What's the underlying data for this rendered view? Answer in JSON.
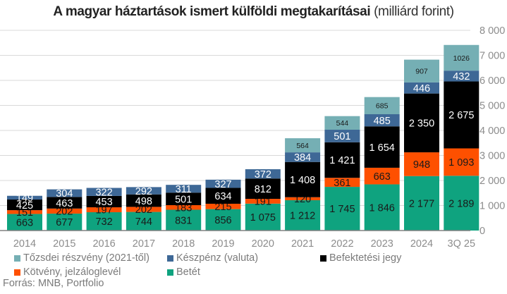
{
  "title": {
    "bold": "A magyar háztartások ismert külföldi megtakarításai",
    "unit": "(milliárd forint)"
  },
  "source": "Forrás: MNB, Portfolio",
  "chart_data": {
    "type": "bar",
    "stacked": true,
    "title": "A magyar háztartások ismert külföldi megtakarításai (milliárd forint)",
    "xlabel": "",
    "ylabel": "",
    "ylim": [
      0,
      8000
    ],
    "yticks": [
      0,
      1000,
      2000,
      3000,
      4000,
      5000,
      6000,
      7000,
      8000
    ],
    "ytick_labels": [
      "0",
      "1 000",
      "2 000",
      "3 000",
      "4 000",
      "5 000",
      "6 000",
      "7 000",
      "8 000"
    ],
    "y_axis_side": "right",
    "grid": true,
    "legend_position": "bottom",
    "categories": [
      "2014",
      "2015",
      "2016",
      "2017",
      "2018",
      "2019",
      "2020",
      "2021",
      "2022",
      "2023",
      "2024",
      "3Q 25"
    ],
    "series": [
      {
        "name": "Betét",
        "color": "#0fa37f",
        "label_color": "#1a1a1a",
        "values": [
          663,
          677,
          732,
          744,
          831,
          856,
          1075,
          1212,
          1745,
          1846,
          2177,
          2189
        ],
        "labels": [
          "663",
          "677",
          "732",
          "744",
          "831",
          "856",
          "1 075",
          "1 212",
          "1 745",
          "1 846",
          "2 177",
          "2 189"
        ]
      },
      {
        "name": "Kötvény, jelzáloglevél",
        "color": "#fe5000",
        "label_color": "#1a1a1a",
        "values": [
          151,
          202,
          197,
          202,
          183,
          215,
          191,
          120,
          361,
          663,
          948,
          1093
        ],
        "labels": [
          "151",
          "202",
          "197",
          "202",
          "183",
          "215",
          "191",
          "120",
          "361",
          "663",
          "948",
          "1 093"
        ]
      },
      {
        "name": "Befektetési jegy",
        "color": "#000000",
        "label_color": "#ffffff",
        "values": [
          425,
          463,
          453,
          498,
          501,
          634,
          812,
          1408,
          1421,
          1654,
          2350,
          2675
        ],
        "labels": [
          "425",
          "463",
          "453",
          "498",
          "501",
          "634",
          "812",
          "1 408",
          "1 421",
          "1 654",
          "2 350",
          "2 675"
        ]
      },
      {
        "name": "Készpénz (valuta)",
        "color": "#3e6896",
        "label_color": "#ffffff",
        "values": [
          149,
          304,
          322,
          292,
          311,
          327,
          372,
          384,
          501,
          485,
          446,
          432
        ],
        "labels": [
          "149",
          "304",
          "322",
          "292",
          "311",
          "327",
          "372",
          "384",
          "501",
          "485",
          "446",
          "432"
        ]
      },
      {
        "name": "Tőzsdei részvény (2021-től)",
        "color": "#75afb4",
        "label_color": "#1a1a1a",
        "label_small": true,
        "values": [
          0,
          0,
          0,
          0,
          0,
          0,
          0,
          564,
          544,
          685,
          907,
          1026
        ],
        "labels": [
          "",
          "",
          "",
          "",
          "",
          "",
          "",
          "564",
          "544",
          "685",
          "907",
          "1026"
        ]
      }
    ]
  },
  "legend": [
    {
      "label": "Tőzsdei részvény (2021-től)",
      "color": "#75afb4"
    },
    {
      "label": "Készpénz (valuta)",
      "color": "#3e6896"
    },
    {
      "label": "Befektetési jegy",
      "color": "#000000"
    },
    {
      "label": "Kötvény, jelzáloglevél",
      "color": "#fe5000"
    },
    {
      "label": "Betét",
      "color": "#0fa37f"
    }
  ]
}
